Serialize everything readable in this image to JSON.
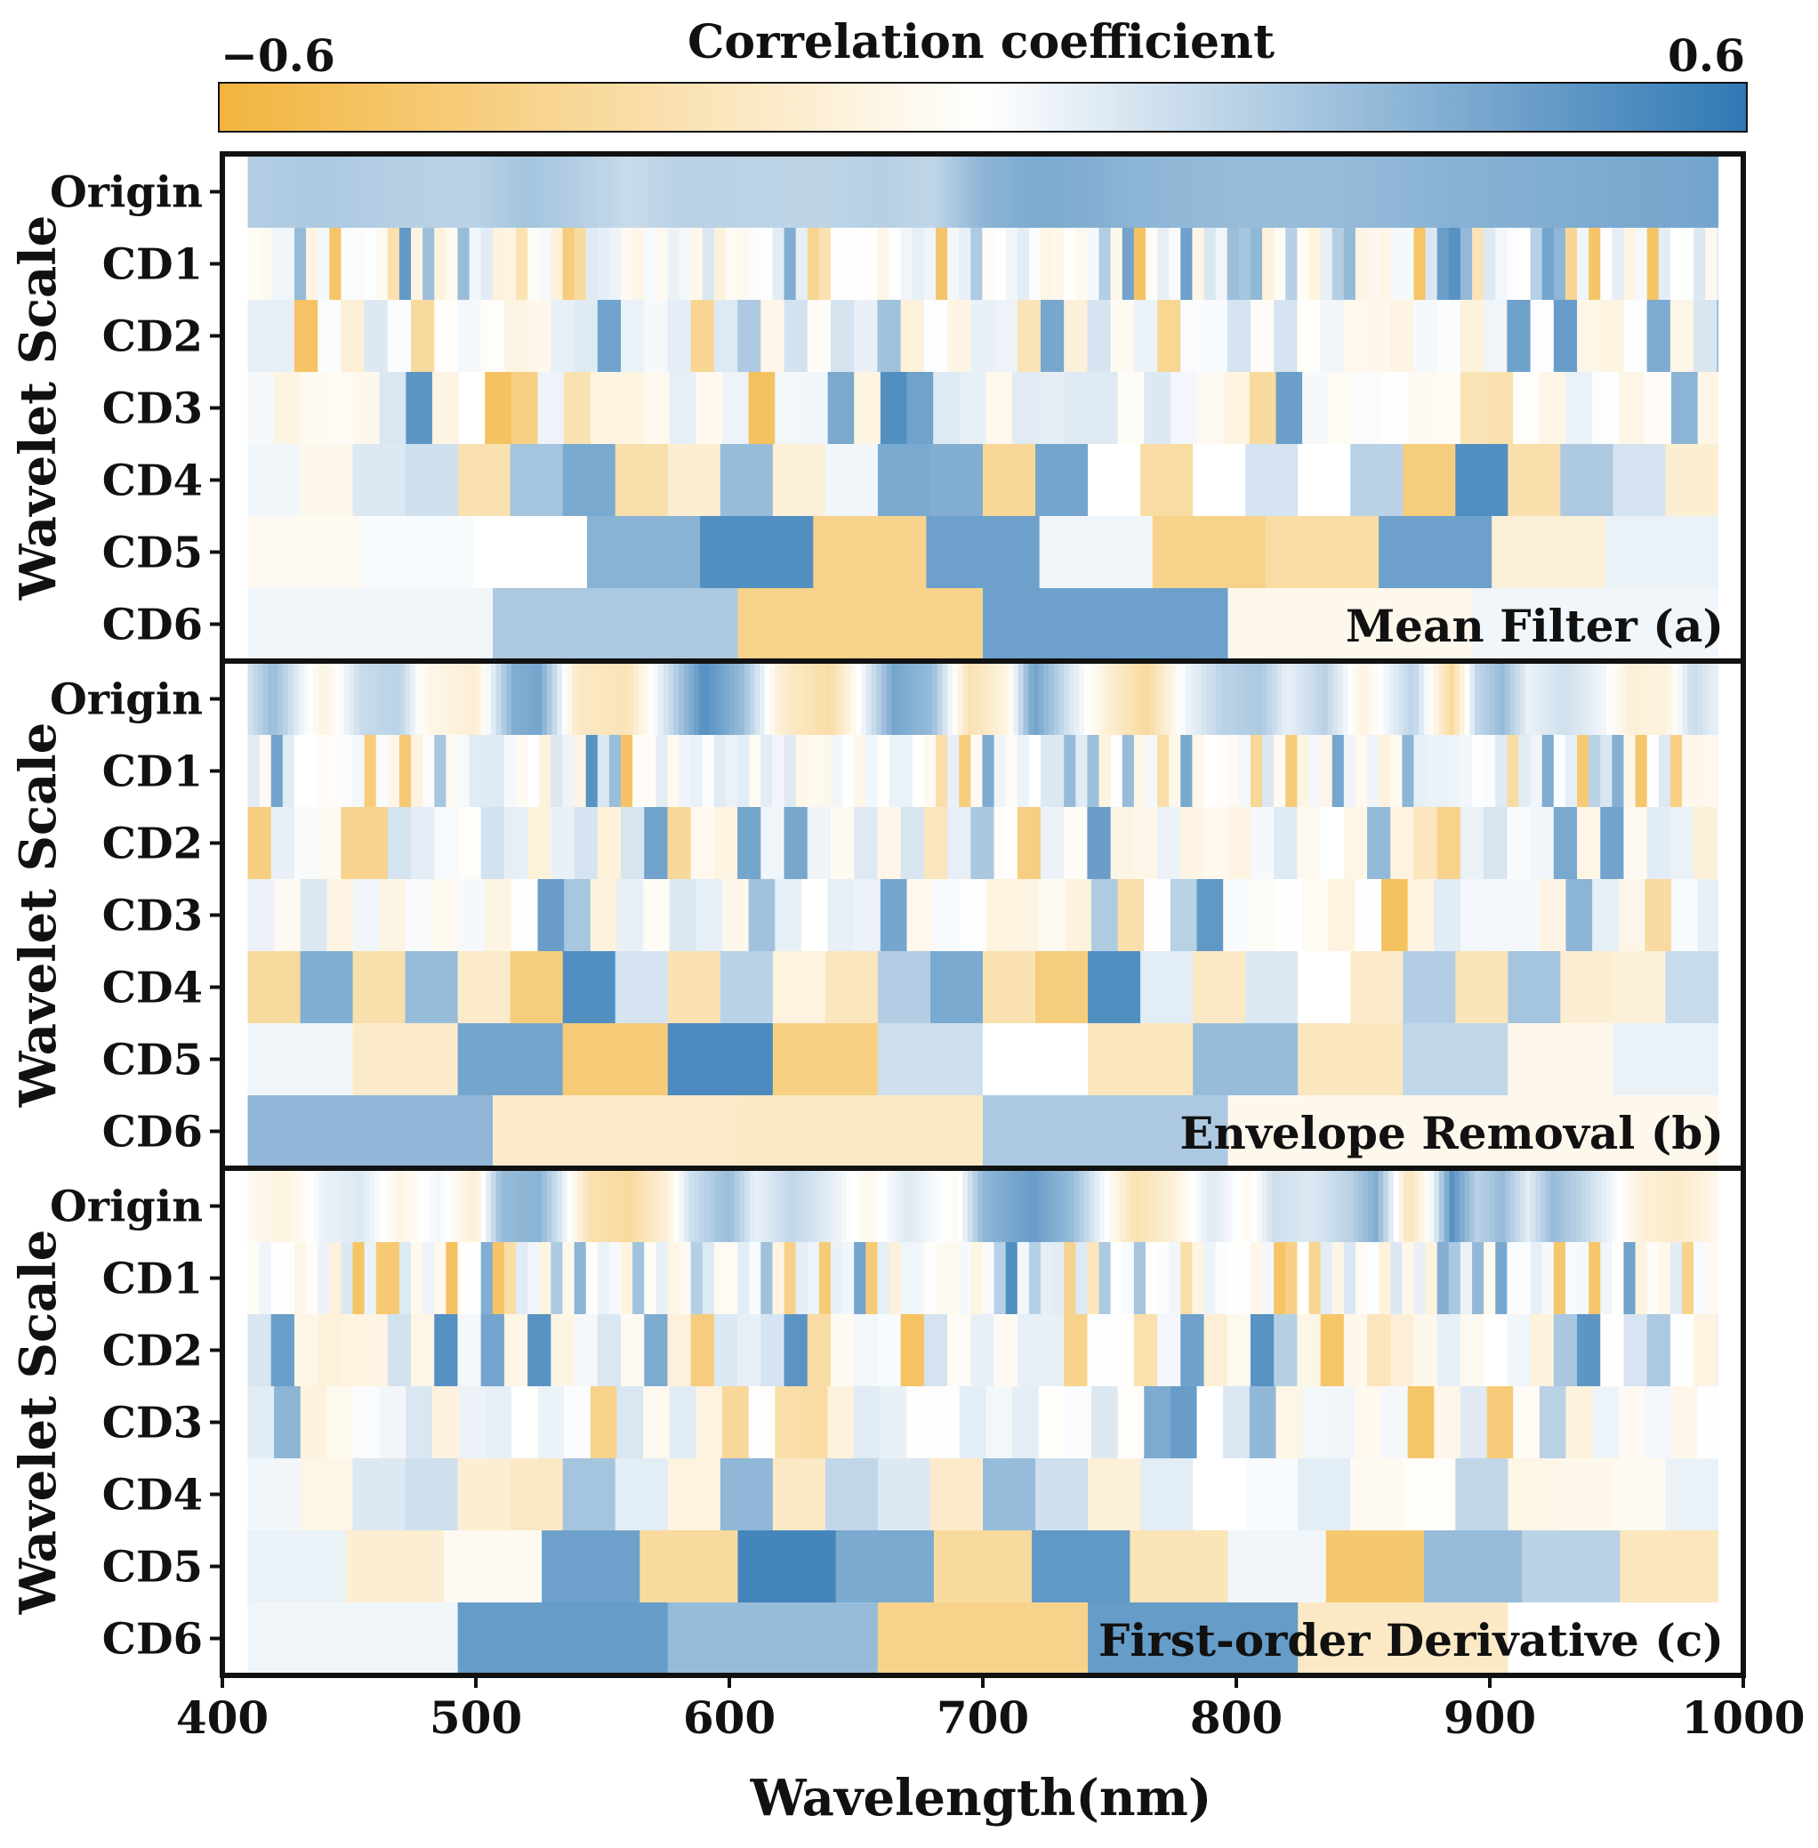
{
  "chart_data": {
    "type": "heatmap",
    "colorbar": {
      "title": "Correlation coefficient",
      "min_label": "−0.6",
      "max_label": "0.6",
      "min": -0.6,
      "max": 0.6,
      "colors": [
        "#f2b43c",
        "#ffffff",
        "#2f78b4"
      ]
    },
    "xlabel": "Wavelength(nm)",
    "xlim": [
      400,
      1000
    ],
    "xticks": [
      "400",
      "500",
      "600",
      "700",
      "800",
      "900",
      "1000"
    ],
    "ylabel": "Wavelet Scale",
    "rows": [
      "Origin",
      "CD1",
      "CD2",
      "CD3",
      "CD4",
      "CD5",
      "CD6"
    ],
    "data_xrange": [
      410,
      990
    ],
    "panels": [
      {
        "label": "Mean Filter (a)",
        "origin": [
          [
            410,
            0.22
          ],
          [
            440,
            0.24
          ],
          [
            470,
            0.21
          ],
          [
            500,
            0.2
          ],
          [
            520,
            0.26
          ],
          [
            540,
            0.22
          ],
          [
            560,
            0.16
          ],
          [
            580,
            0.2
          ],
          [
            600,
            0.2
          ],
          [
            620,
            0.19
          ],
          [
            640,
            0.19
          ],
          [
            660,
            0.21
          ],
          [
            680,
            0.18
          ],
          [
            700,
            0.33
          ],
          [
            720,
            0.38
          ],
          [
            740,
            0.36
          ],
          [
            760,
            0.33
          ],
          [
            800,
            0.3
          ],
          [
            840,
            0.3
          ],
          [
            880,
            0.34
          ],
          [
            920,
            0.36
          ],
          [
            950,
            0.38
          ],
          [
            990,
            0.4
          ]
        ],
        "cd4": [
          0.04,
          -0.06,
          0.1,
          0.14,
          -0.24,
          0.26,
          0.38,
          -0.26,
          -0.14,
          0.3,
          -0.12,
          0.04,
          0.38,
          0.36,
          -0.32,
          0.4,
          0,
          -0.28,
          0,
          0.12,
          0,
          0.2,
          -0.4,
          0.5,
          -0.26,
          0.24,
          0.12,
          -0.14
        ],
        "cd5": [
          -0.04,
          0.02,
          0,
          0.34,
          0.5,
          -0.36,
          0.42,
          0.04,
          -0.36,
          -0.28,
          0.42,
          -0.12,
          0.06
        ],
        "cd6": [
          0.04,
          0.24,
          -0.36,
          0.42,
          -0.06,
          0.04
        ]
      },
      {
        "label": "Envelope Removal (b)",
        "origin": [
          [
            410,
            0.12
          ],
          [
            420,
            0.3
          ],
          [
            430,
            0.08
          ],
          [
            440,
            -0.1
          ],
          [
            455,
            0.16
          ],
          [
            470,
            0.2
          ],
          [
            480,
            -0.06
          ],
          [
            500,
            -0.14
          ],
          [
            515,
            0.36
          ],
          [
            525,
            0.4
          ],
          [
            540,
            -0.18
          ],
          [
            560,
            -0.22
          ],
          [
            575,
            0.12
          ],
          [
            590,
            0.5
          ],
          [
            605,
            0.3
          ],
          [
            620,
            -0.14
          ],
          [
            640,
            -0.28
          ],
          [
            655,
            0.1
          ],
          [
            665,
            0.4
          ],
          [
            680,
            0.3
          ],
          [
            695,
            -0.24
          ],
          [
            710,
            -0.08
          ],
          [
            720,
            0.42
          ],
          [
            735,
            0.1
          ],
          [
            750,
            -0.14
          ],
          [
            765,
            -0.3
          ],
          [
            780,
            0.04
          ],
          [
            795,
            0.2
          ],
          [
            810,
            0.24
          ],
          [
            820,
            0.06
          ],
          [
            835,
            0.2
          ],
          [
            850,
            -0.1
          ],
          [
            870,
            0.2
          ],
          [
            885,
            -0.3
          ],
          [
            895,
            0.18
          ],
          [
            905,
            0.3
          ],
          [
            915,
            0.06
          ],
          [
            930,
            0.14
          ],
          [
            945,
            0.04
          ],
          [
            955,
            -0.12
          ],
          [
            970,
            -0.1
          ],
          [
            980,
            0.16
          ],
          [
            990,
            0.06
          ]
        ],
        "cd4": [
          -0.3,
          0.36,
          -0.26,
          0.3,
          -0.16,
          -0.4,
          0.5,
          0.12,
          -0.24,
          0.2,
          -0.1,
          -0.2,
          0.22,
          0.38,
          -0.24,
          -0.4,
          0.5,
          0.08,
          -0.18,
          0.1,
          0,
          -0.16,
          0.22,
          -0.22,
          0.26,
          -0.14,
          -0.12,
          0.16
        ],
        "cd5": [
          0.04,
          -0.16,
          0.4,
          -0.42,
          0.52,
          -0.38,
          0.14,
          0,
          -0.2,
          0.3,
          -0.2,
          0.18,
          -0.06,
          0.06
        ],
        "cd6": [
          0.32,
          -0.16,
          -0.18,
          0.24,
          -0.06,
          -0.06
        ]
      },
      {
        "label": "First-order Derivative (c)",
        "origin": [
          [
            410,
            -0.04
          ],
          [
            425,
            -0.1
          ],
          [
            440,
            0.06
          ],
          [
            455,
            0.1
          ],
          [
            470,
            -0.08
          ],
          [
            485,
            0.04
          ],
          [
            500,
            -0.14
          ],
          [
            510,
            0.3
          ],
          [
            525,
            0.34
          ],
          [
            535,
            0.06
          ],
          [
            545,
            -0.24
          ],
          [
            560,
            -0.3
          ],
          [
            575,
            -0.12
          ],
          [
            585,
            0.14
          ],
          [
            600,
            0.3
          ],
          [
            610,
            0.06
          ],
          [
            625,
            0.18
          ],
          [
            640,
            0.08
          ],
          [
            655,
            -0.06
          ],
          [
            670,
            0.1
          ],
          [
            690,
            -0.04
          ],
          [
            700,
            0.32
          ],
          [
            720,
            0.44
          ],
          [
            735,
            0.3
          ],
          [
            745,
            0.08
          ],
          [
            760,
            -0.24
          ],
          [
            775,
            -0.12
          ],
          [
            790,
            0.1
          ],
          [
            805,
            -0.04
          ],
          [
            815,
            0.14
          ],
          [
            830,
            0.1
          ],
          [
            845,
            0.2
          ],
          [
            855,
            0.36
          ],
          [
            868,
            -0.22
          ],
          [
            878,
            0.06
          ],
          [
            885,
            0.48
          ],
          [
            895,
            0.2
          ],
          [
            905,
            0.3
          ],
          [
            915,
            0.08
          ],
          [
            925,
            0.3
          ],
          [
            935,
            0.2
          ],
          [
            945,
            0.08
          ],
          [
            960,
            -0.12
          ],
          [
            975,
            -0.16
          ],
          [
            990,
            -0.06
          ]
        ],
        "cd4": [
          0.04,
          -0.08,
          0.1,
          0.14,
          -0.14,
          -0.18,
          0.26,
          0.08,
          -0.1,
          0.32,
          -0.18,
          0.18,
          0.1,
          -0.16,
          0.3,
          0.14,
          -0.12,
          0.08,
          0,
          0.02,
          0.08,
          -0.04,
          -0.02,
          0.18,
          -0.08,
          -0.06,
          -0.04,
          0.06
        ],
        "cd5": [
          0.06,
          -0.14,
          -0.04,
          0.42,
          -0.3,
          0.54,
          0.38,
          -0.3,
          0.46,
          -0.22,
          0.04,
          -0.44,
          0.3,
          0.2,
          -0.2
        ],
        "cd6": [
          0.04,
          0.44,
          0.3,
          -0.36,
          0.44,
          -0.18,
          0
        ]
      }
    ]
  }
}
